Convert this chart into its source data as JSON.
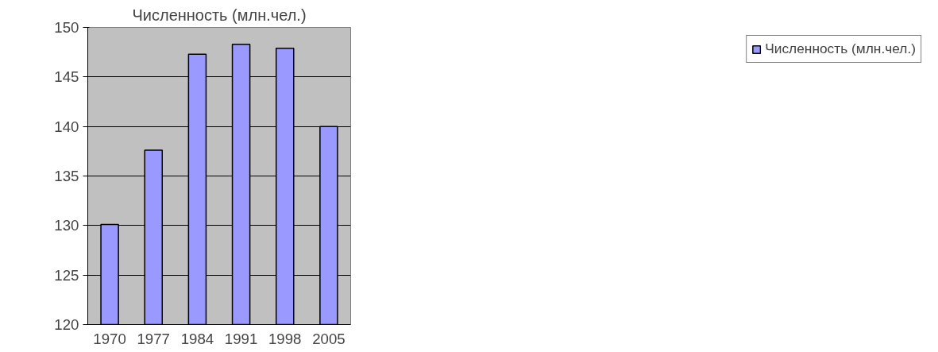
{
  "chart_data": {
    "type": "bar",
    "title": "Численность (млн.чел.)",
    "categories": [
      "1970",
      "1977",
      "1984",
      "1991",
      "1998",
      "2005"
    ],
    "series": [
      {
        "name": "Численность (млн.чел.)",
        "color": "#9999ff",
        "values": [
          130.1,
          137.6,
          147.3,
          148.3,
          147.9,
          140.0
        ]
      }
    ],
    "ylim": [
      120,
      150
    ],
    "yticks": [
      120,
      125,
      130,
      135,
      140,
      145,
      150
    ],
    "grid": "y",
    "legend": "right"
  }
}
